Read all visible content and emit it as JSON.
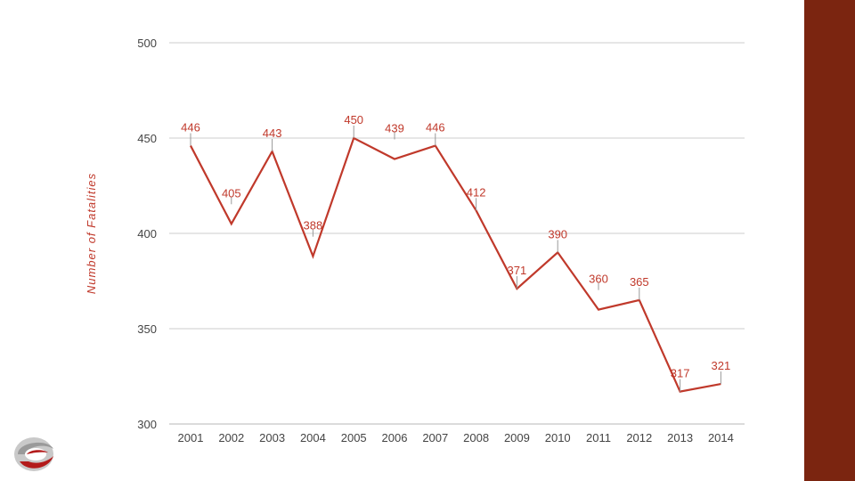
{
  "slide": {
    "accent_bar_color": "#7b2510",
    "logo_icon": "company-logo-icon"
  },
  "chart_data": {
    "type": "line",
    "title": "",
    "xlabel": "",
    "ylabel": "Number of Fatalities",
    "x": [
      "2001",
      "2002",
      "2003",
      "2004",
      "2005",
      "2006",
      "2007",
      "2008",
      "2009",
      "2010",
      "2011",
      "2012",
      "2013",
      "2014"
    ],
    "series": [
      {
        "values": [
          446,
          405,
          443,
          388,
          450,
          439,
          446,
          412,
          371,
          390,
          360,
          365,
          317,
          321
        ],
        "color": "#c0392b"
      }
    ],
    "ylim": [
      300,
      500
    ],
    "yticks": [
      300,
      350,
      400,
      450,
      500
    ],
    "grid": true,
    "legend": "none",
    "data_labels": true
  }
}
